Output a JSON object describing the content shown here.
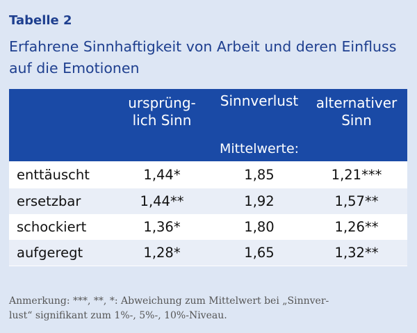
{
  "label": "Tabelle 2",
  "title_line1": "Erfahrene Sinnhaftigkeit von Arbeit und deren Einfluss",
  "title_line2": "auf die Emotionen",
  "table": {
    "headers": [
      {
        "line1": "ursprüng-",
        "line2": "lich Sinn"
      },
      {
        "line1": "Sinnverlust",
        "line2": ""
      },
      {
        "line1": "alternativer",
        "line2": "Sinn"
      }
    ],
    "subheader": "Mittelwerte:",
    "rows": [
      {
        "label": "enttäuscht",
        "values": [
          "1,44*",
          "1,85",
          "1,21***"
        ]
      },
      {
        "label": "ersetzbar",
        "values": [
          "1,44**",
          "1,92",
          "1,57**"
        ]
      },
      {
        "label": "schockiert",
        "values": [
          "1,36*",
          "1,80",
          "1,26**"
        ]
      },
      {
        "label": "aufgeregt",
        "values": [
          "1,28*",
          "1,65",
          "1,32**"
        ]
      }
    ]
  },
  "note_line1": "Anmerkung: ***, **, *: Abweichung zum Mittelwert bei „Sinnver-",
  "note_line2": "lust“ signifikant zum 1%-, 5%-, 10%-Niveau.",
  "colors": {
    "page_background": "#dde6f4",
    "accent": "#1e3f8f",
    "header_background": "#1a4aa6",
    "stripe": "#e9eef7"
  }
}
